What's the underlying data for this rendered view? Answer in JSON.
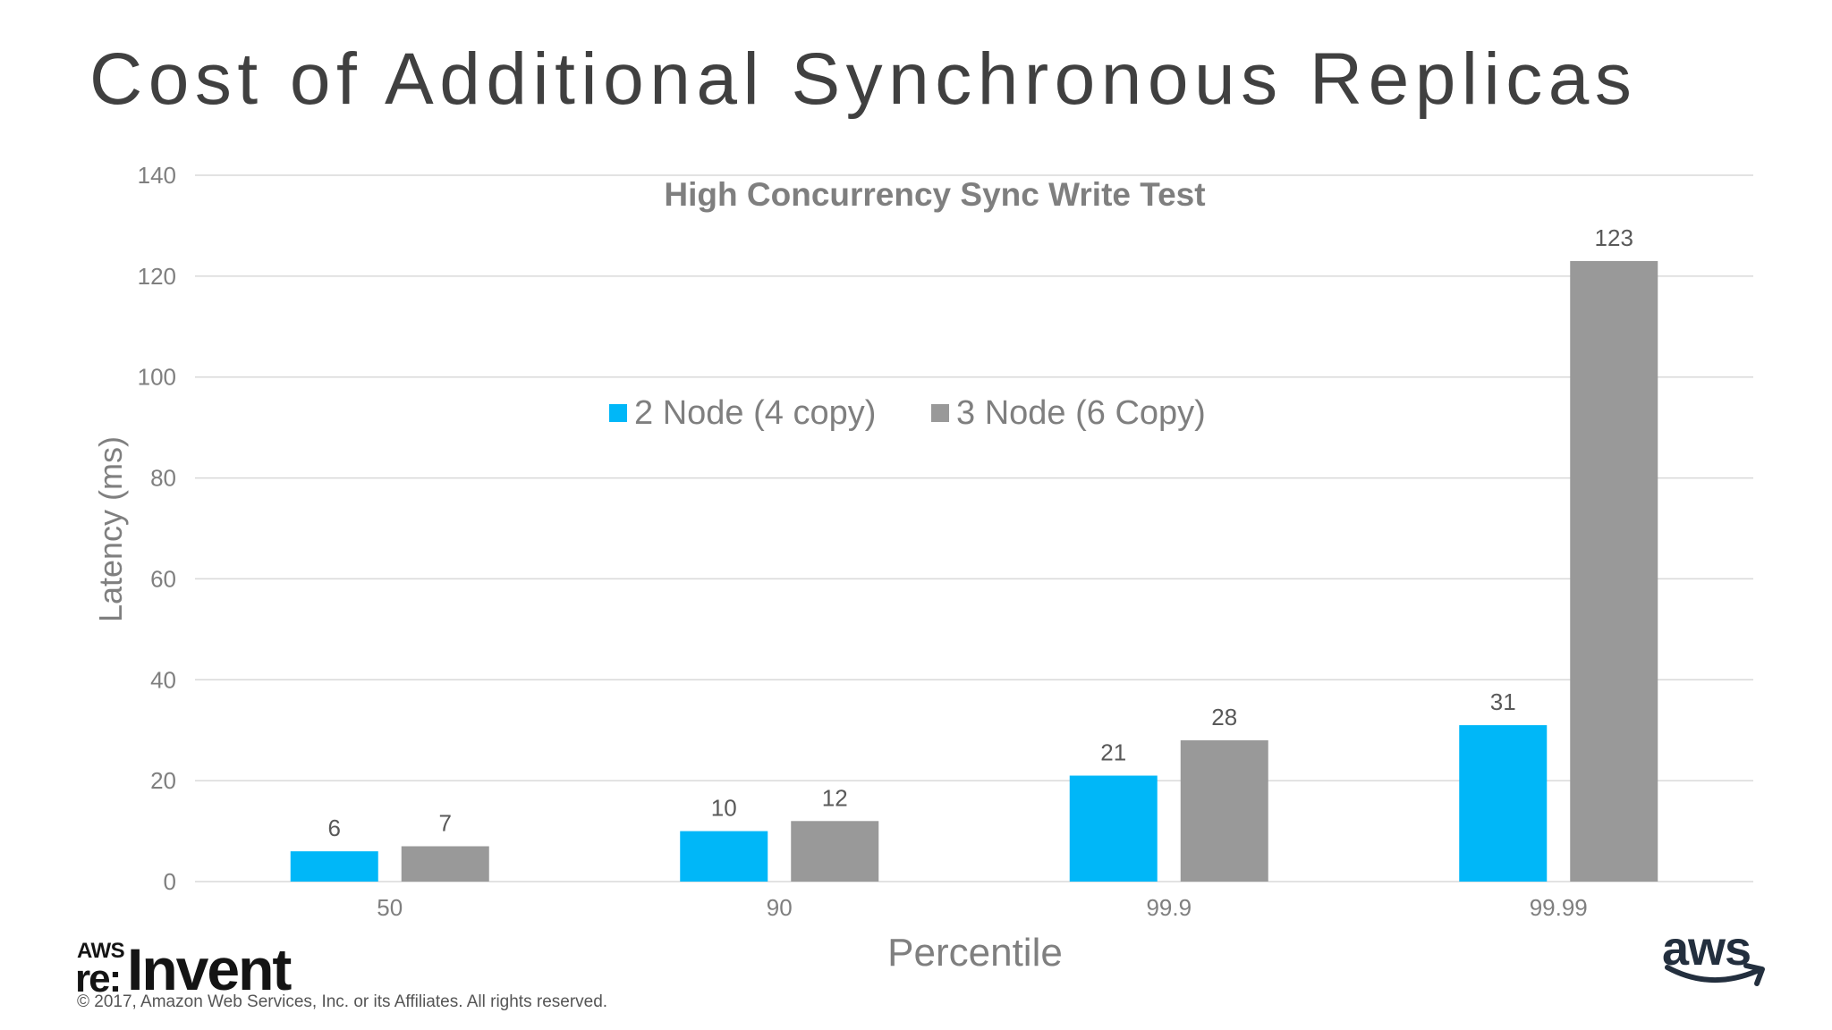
{
  "slide": {
    "title": "Cost of Additional Synchronous Replicas",
    "copyright": "© 2017, Amazon Web Services, Inc. or its Affiliates. All rights reserved."
  },
  "logos": {
    "reinvent_aws": "AWS",
    "reinvent_re": "re:",
    "reinvent_invent": "Invent",
    "aws": "aws"
  },
  "colors": {
    "series1": "#00b7f8",
    "series2": "#999999",
    "axis_text": "#7f7f7f",
    "gridline": "#d9d9d9",
    "title": "#404040"
  },
  "chart_data": {
    "type": "bar",
    "title": "High Concurrency Sync Write Test",
    "xlabel": "Percentile",
    "ylabel": "Latency (ms)",
    "categories": [
      "50",
      "90",
      "99.9",
      "99.99"
    ],
    "series": [
      {
        "name": "2 Node (4 copy)",
        "values": [
          6,
          10,
          21,
          31
        ]
      },
      {
        "name": "3 Node (6 Copy)",
        "values": [
          7,
          12,
          28,
          123
        ]
      }
    ],
    "ylim": [
      0,
      140
    ],
    "yticks": [
      0,
      20,
      40,
      60,
      80,
      100,
      120,
      140
    ],
    "data_labels": [
      [
        "6",
        "10",
        "21",
        "31"
      ],
      [
        "7",
        "12",
        "28",
        "123"
      ]
    ],
    "grid": true,
    "legend_position": "inside-top-center"
  }
}
